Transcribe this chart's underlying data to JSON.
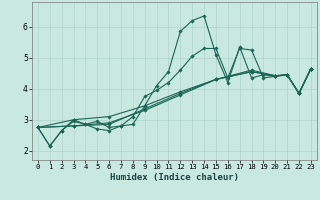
{
  "title": "",
  "xlabel": "Humidex (Indice chaleur)",
  "bg_color": "#c8e8e0",
  "line_color": "#1a6655",
  "grid_color": "#b0d4cc",
  "xlim": [
    -0.5,
    23.5
  ],
  "ylim": [
    1.7,
    6.8
  ],
  "xticks": [
    0,
    1,
    2,
    3,
    4,
    5,
    6,
    7,
    8,
    9,
    10,
    11,
    12,
    13,
    14,
    15,
    16,
    17,
    18,
    19,
    20,
    21,
    22,
    23
  ],
  "yticks": [
    2,
    3,
    4,
    5,
    6
  ],
  "lines": [
    {
      "x": [
        0,
        1,
        2,
        3,
        4,
        5,
        6,
        7,
        8,
        9,
        10,
        11,
        12,
        13,
        14,
        15,
        16,
        17,
        18,
        19,
        20,
        21,
        22,
        23
      ],
      "y": [
        2.75,
        2.15,
        2.65,
        2.95,
        2.85,
        2.7,
        2.65,
        2.8,
        2.85,
        3.45,
        4.1,
        4.55,
        5.85,
        6.2,
        6.35,
        5.1,
        4.2,
        5.35,
        4.35,
        4.45,
        4.4,
        4.45,
        3.85,
        4.65
      ]
    },
    {
      "x": [
        0,
        1,
        2,
        3,
        4,
        5,
        6,
        7,
        8,
        9,
        10,
        11,
        12,
        13,
        14,
        15,
        16,
        17,
        18,
        19,
        20,
        21,
        22,
        23
      ],
      "y": [
        2.75,
        2.15,
        2.65,
        3.0,
        2.85,
        2.95,
        2.75,
        2.8,
        3.1,
        3.75,
        3.95,
        4.2,
        4.6,
        5.05,
        5.3,
        5.3,
        4.35,
        5.3,
        5.25,
        4.35,
        4.4,
        4.45,
        3.85,
        4.65
      ]
    },
    {
      "x": [
        0,
        3,
        6,
        9,
        12,
        15,
        18,
        20,
        21,
        22,
        23
      ],
      "y": [
        2.75,
        2.8,
        2.9,
        3.3,
        3.8,
        4.3,
        4.55,
        4.42,
        4.45,
        3.85,
        4.65
      ]
    },
    {
      "x": [
        0,
        3,
        6,
        9,
        12,
        15,
        18,
        20,
        21,
        22,
        23
      ],
      "y": [
        2.75,
        2.8,
        2.85,
        3.35,
        3.85,
        4.3,
        4.55,
        4.42,
        4.45,
        3.85,
        4.65
      ]
    },
    {
      "x": [
        0,
        3,
        6,
        9,
        12,
        15,
        18,
        20,
        21,
        22,
        23
      ],
      "y": [
        2.75,
        3.0,
        3.1,
        3.45,
        3.9,
        4.3,
        4.6,
        4.42,
        4.45,
        3.85,
        4.65
      ]
    }
  ]
}
